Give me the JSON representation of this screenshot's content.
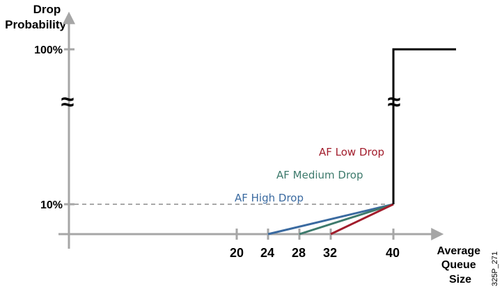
{
  "chart_data": {
    "type": "line",
    "ylabel": "Drop\nProbability",
    "xlabel": "Average\nQueue\nSize",
    "x_ticks": [
      "20",
      "24",
      "28",
      "32",
      "40"
    ],
    "y_ticks": [
      "10%",
      "100%"
    ],
    "axis_break_symbol": "≈",
    "figure_code": "325P_271",
    "series": [
      {
        "name": "AF High Drop",
        "color": "#3a6aa0",
        "points": [
          [
            24,
            0
          ],
          [
            40,
            10
          ]
        ]
      },
      {
        "name": "AF Medium Drop",
        "color": "#3d7a6c",
        "points": [
          [
            28,
            0
          ],
          [
            40,
            10
          ]
        ]
      },
      {
        "name": "AF Low Drop",
        "color": "#a21d2c",
        "points": [
          [
            32,
            0
          ],
          [
            40,
            10
          ]
        ]
      },
      {
        "name": "",
        "color": "#000000",
        "points": [
          [
            40,
            10
          ],
          [
            40,
            100
          ],
          [
            48,
            100
          ]
        ]
      }
    ]
  }
}
